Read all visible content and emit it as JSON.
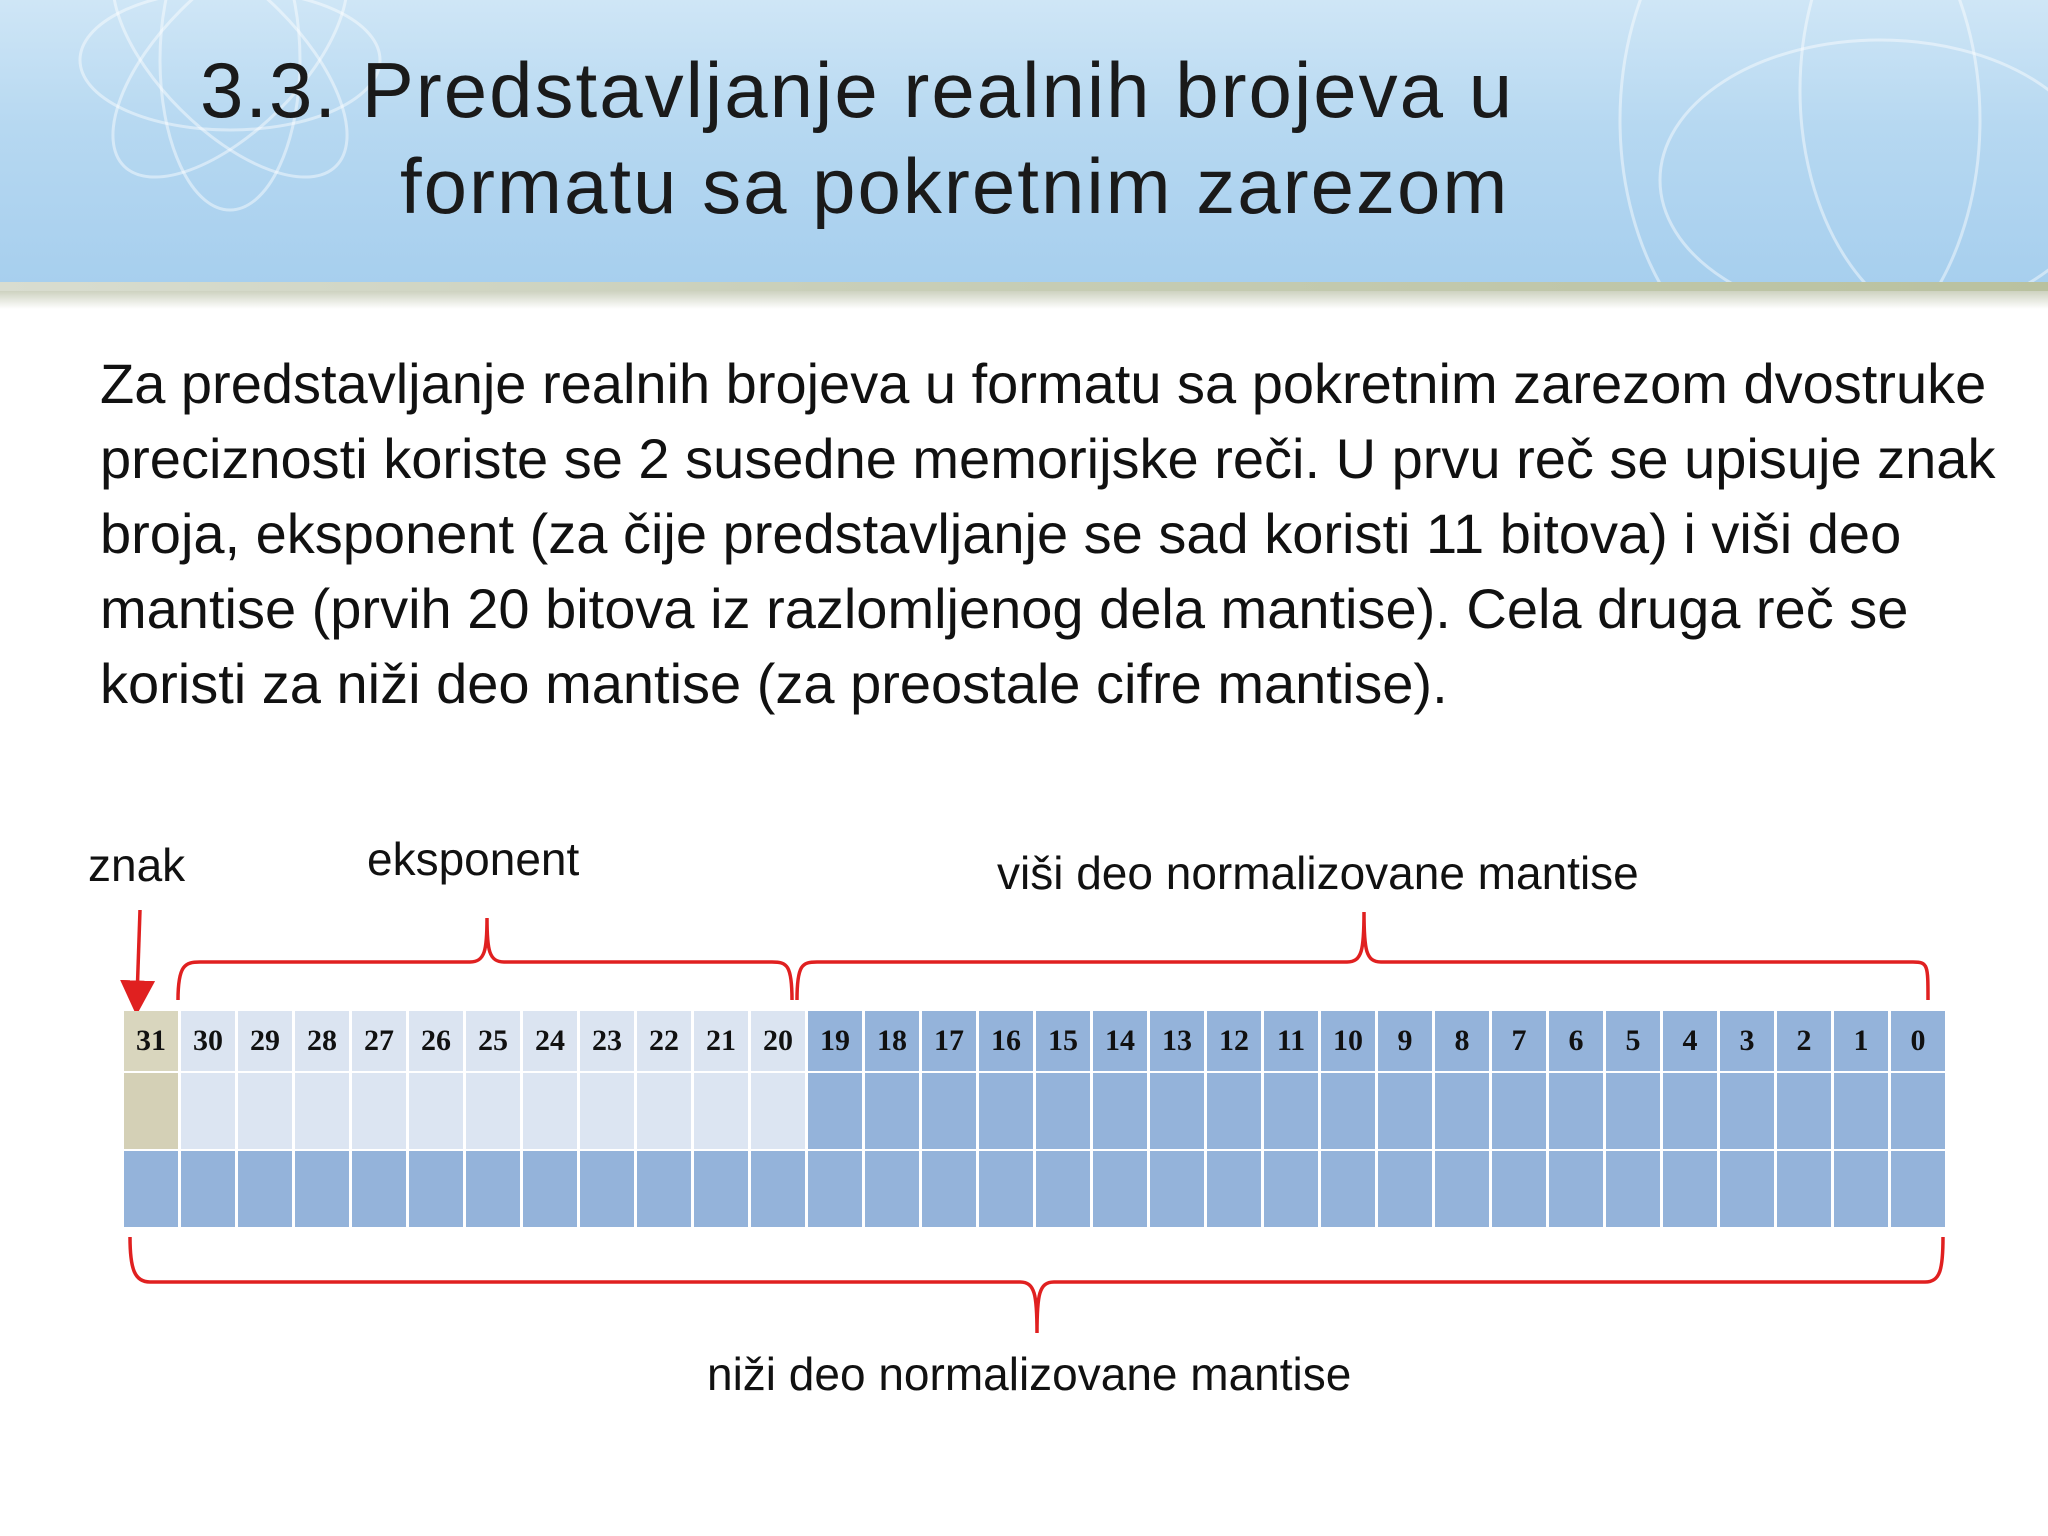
{
  "slide": {
    "title_line1": "3.3. Predstavljanje realnih brojeva u",
    "title_line2": "formatu sa pokretnim zarezom",
    "body": "Za predstavljanje realnih brojeva u formatu sa pokretnim zarezom dvostruke preciznosti koriste se 2 susedne memorijske reči. U prvu reč se upisuje znak broja, eksponent (za čije predstavljanje se sad koristi 11 bitova) i viši deo mantise (prvih 20 bitova iz razlomljenog dela mantise). Cela druga reč se koristi za niži deo mantise (za preostale cifre mantise)."
  },
  "diagram": {
    "labels": {
      "sign": "znak",
      "exponent": "eksponent",
      "upper_mantissa": "viši deo normalizovane mantise",
      "lower_mantissa": "niži deo normalizovane mantise"
    },
    "bits": [
      "31",
      "30",
      "29",
      "28",
      "27",
      "26",
      "25",
      "24",
      "23",
      "22",
      "21",
      "20",
      "19",
      "18",
      "17",
      "16",
      "15",
      "14",
      "13",
      "12",
      "11",
      "10",
      "9",
      "8",
      "7",
      "6",
      "5",
      "4",
      "3",
      "2",
      "1",
      "0"
    ],
    "field_bits": {
      "sign": 1,
      "exponent": 11,
      "upper_mantissa": 20
    },
    "words": 2,
    "colors": {
      "sign": "#d4d0b6",
      "exponent": "#dce5f2",
      "mantissa": "#94b3da",
      "brace": "#e02020"
    }
  }
}
